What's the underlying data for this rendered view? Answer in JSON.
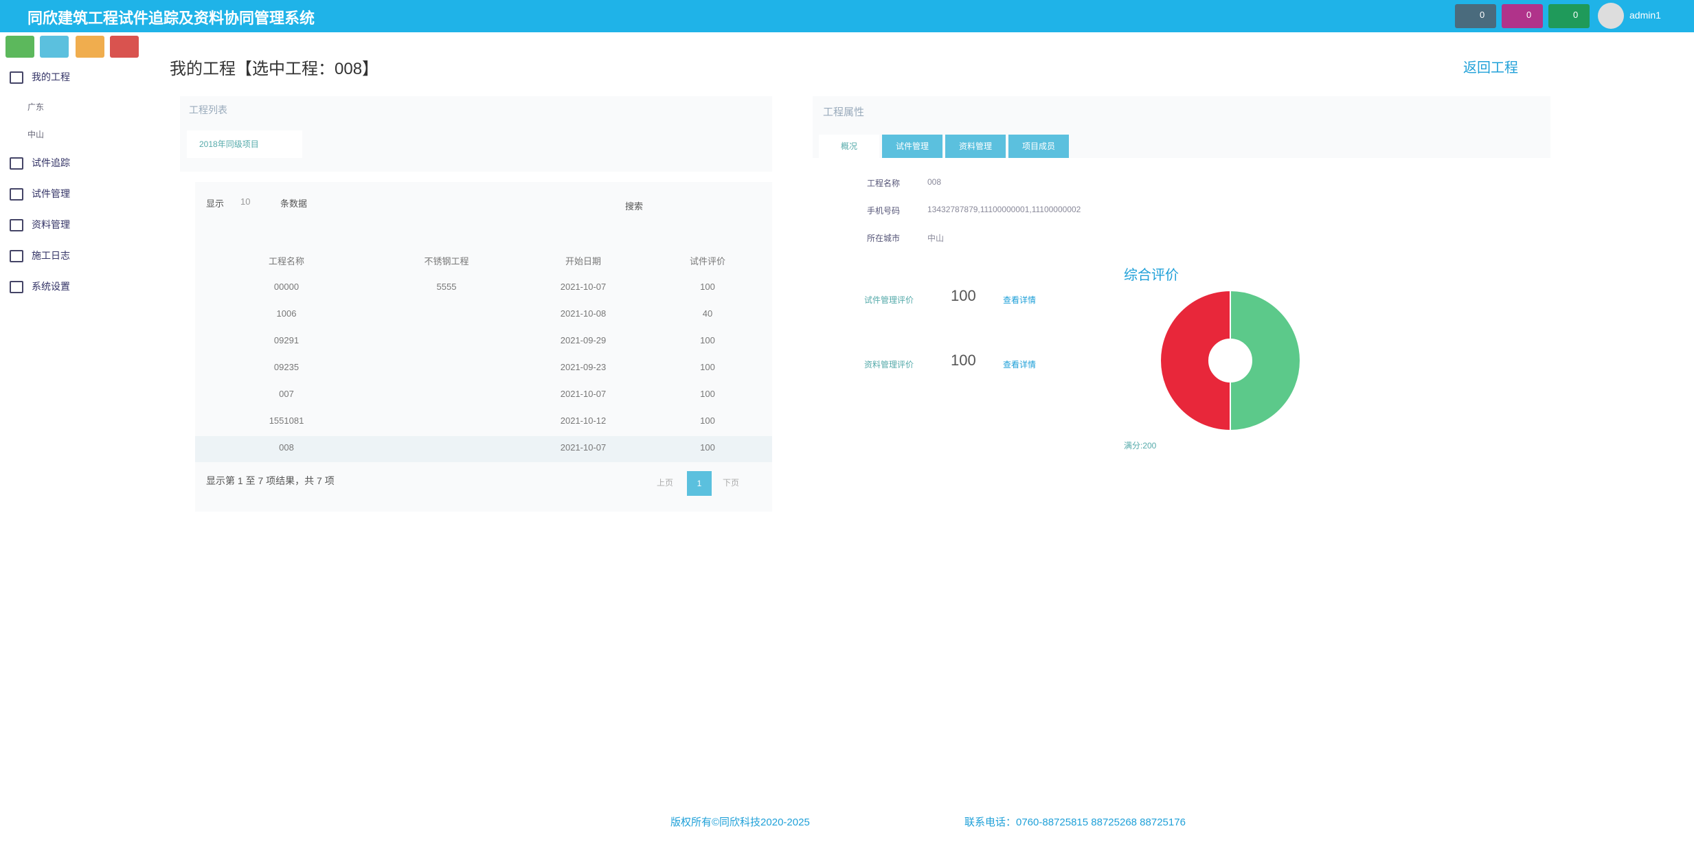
{
  "header": {
    "title": "同欣建筑工程试件追踪及资料协同管理系统",
    "badges": [
      "0",
      "0",
      "0"
    ],
    "user": "admin1"
  },
  "sidebar": {
    "items": [
      {
        "label": "我的工程",
        "children": [
          "广东",
          "中山"
        ]
      },
      {
        "label": "试件追踪"
      },
      {
        "label": "试件管理"
      },
      {
        "label": "资料管理"
      },
      {
        "label": "施工日志"
      },
      {
        "label": "系统设置"
      }
    ]
  },
  "page": {
    "title": "我的工程【选中工程：008】",
    "back_link": "返回工程"
  },
  "project_list": {
    "title": "工程列表",
    "tab": "2018年同级项目",
    "controls": {
      "show": "显示",
      "page_size": "10",
      "unit": "条数据",
      "search": "搜索"
    },
    "table": {
      "columns": [
        "工程名称",
        "不锈钢工程",
        "开始日期",
        "试件评价"
      ],
      "rows": [
        [
          "00000",
          "5555",
          "2021-10-07",
          100
        ],
        [
          "1006",
          null,
          "2021-10-08",
          40
        ],
        [
          "09291",
          null,
          "2021-09-29",
          100
        ],
        [
          "09235",
          null,
          "2021-09-23",
          100
        ],
        [
          "007",
          null,
          "2021-10-07",
          100
        ],
        [
          "1551081",
          null,
          "2021-10-12",
          100
        ],
        [
          "008",
          null,
          "2021-10-07",
          100
        ]
      ]
    },
    "summary": "显示第 1 至 7 项结果，共 7 项",
    "pagination": [
      "上页",
      "1",
      "下页"
    ]
  },
  "project_props": {
    "title": "工程属性",
    "tabs": [
      "概况",
      "试件管理",
      "资料管理",
      "项目成员"
    ],
    "fields": [
      {
        "label": "工程名称",
        "value": "008"
      },
      {
        "label": "手机号码",
        "value": "13432787879,11100000001,11100000002"
      },
      {
        "label": "所在城市",
        "value": "中山"
      }
    ],
    "evaluation": {
      "title": "综合评价",
      "scores": [
        {
          "label": "试件管理评价",
          "value": 100,
          "link": "查看详情",
          "color": "#5cc98a"
        },
        {
          "label": "资料管理评价",
          "value": 100,
          "link": "查看详情",
          "color": "#e8273a"
        }
      ],
      "total": "满分:200"
    }
  },
  "footer": {
    "copyright": "版权所有©同欣科技2020-2025",
    "contact": "联系电话：0760-88725815 88725268 88725176"
  }
}
